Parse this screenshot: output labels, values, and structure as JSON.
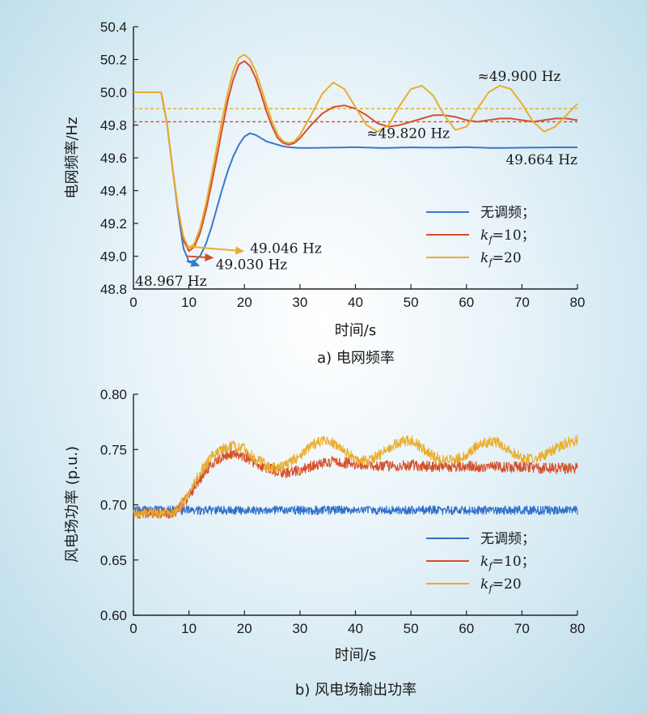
{
  "chart_data": [
    {
      "type": "line",
      "caption": "a) 电网频率",
      "xlabel": "时间/s",
      "ylabel": "电网频率/Hz",
      "xlim": [
        0,
        80
      ],
      "ylim": [
        48.8,
        50.4
      ],
      "xticks": [
        0,
        10,
        20,
        30,
        40,
        50,
        60,
        70,
        80
      ],
      "yticks": [
        48.8,
        49.0,
        49.2,
        49.4,
        49.6,
        49.8,
        50.0,
        50.2,
        50.4
      ],
      "ytick_labels": [
        "48.8",
        "49.0",
        "49.2",
        "49.4",
        "49.6",
        "49.8",
        "50.0",
        "50.2",
        "50.4"
      ],
      "legend_position": "lower-right",
      "series": [
        {
          "legend_prefix": "无调频；",
          "legend_sub": "",
          "legend_suffix": "",
          "color": "#3a78c9",
          "x": [
            0,
            5,
            6,
            7,
            8,
            9,
            10,
            11,
            12,
            13,
            14,
            15,
            16,
            17,
            18,
            19,
            20,
            21,
            22,
            23,
            24,
            25,
            26,
            27,
            28,
            30,
            35,
            40,
            45,
            50,
            55,
            60,
            65,
            70,
            75,
            80
          ],
          "y": [
            50.0,
            50.0,
            49.82,
            49.55,
            49.28,
            49.05,
            48.967,
            48.97,
            49.0,
            49.07,
            49.17,
            49.29,
            49.41,
            49.52,
            49.61,
            49.68,
            49.73,
            49.75,
            49.74,
            49.72,
            49.7,
            49.69,
            49.68,
            49.67,
            49.665,
            49.66,
            49.662,
            49.665,
            49.66,
            49.664,
            49.662,
            49.665,
            49.66,
            49.662,
            49.664,
            49.664
          ]
        },
        {
          "legend_prefix": "",
          "legend_sub": "f",
          "legend_suffix": "=10；",
          "color": "#d4502a",
          "x": [
            0,
            5,
            6,
            7,
            8,
            9,
            10,
            11,
            12,
            13,
            14,
            15,
            16,
            17,
            18,
            19,
            20,
            21,
            22,
            23,
            24,
            25,
            26,
            27,
            28,
            29,
            30,
            32,
            34,
            36,
            38,
            40,
            42,
            44,
            46,
            48,
            50,
            52,
            54,
            56,
            58,
            60,
            62,
            64,
            66,
            68,
            70,
            72,
            74,
            76,
            78,
            80
          ],
          "y": [
            50.0,
            50.0,
            49.82,
            49.55,
            49.3,
            49.1,
            49.03,
            49.06,
            49.14,
            49.27,
            49.43,
            49.6,
            49.78,
            49.95,
            50.08,
            50.17,
            50.19,
            50.16,
            50.09,
            49.99,
            49.88,
            49.79,
            49.72,
            49.69,
            49.68,
            49.69,
            49.72,
            49.8,
            49.87,
            49.91,
            49.92,
            49.9,
            49.86,
            49.81,
            49.79,
            49.8,
            49.82,
            49.84,
            49.86,
            49.86,
            49.85,
            49.83,
            49.82,
            49.83,
            49.84,
            49.84,
            49.83,
            49.82,
            49.83,
            49.84,
            49.84,
            49.83
          ]
        },
        {
          "legend_prefix": "",
          "legend_sub": "f",
          "legend_suffix": "=20",
          "color": "#e9ad2c",
          "x": [
            0,
            5,
            6,
            7,
            8,
            9,
            10,
            11,
            12,
            13,
            14,
            15,
            16,
            17,
            18,
            19,
            20,
            21,
            22,
            23,
            24,
            25,
            26,
            27,
            28,
            29,
            30,
            32,
            34,
            36,
            38,
            40,
            42,
            44,
            46,
            48,
            50,
            52,
            54,
            56,
            58,
            60,
            62,
            64,
            66,
            68,
            70,
            72,
            74,
            76,
            78,
            80
          ],
          "y": [
            50.0,
            50.0,
            49.82,
            49.55,
            49.3,
            49.12,
            49.046,
            49.08,
            49.17,
            49.31,
            49.48,
            49.66,
            49.84,
            50.0,
            50.13,
            50.21,
            50.23,
            50.2,
            50.13,
            50.03,
            49.92,
            49.82,
            49.74,
            49.7,
            49.69,
            49.7,
            49.74,
            49.86,
            49.99,
            50.06,
            50.02,
            49.91,
            49.8,
            49.76,
            49.8,
            49.92,
            50.02,
            50.04,
            49.98,
            49.86,
            49.77,
            49.79,
            49.9,
            50.0,
            50.04,
            50.02,
            49.93,
            49.82,
            49.76,
            49.79,
            49.86,
            49.93
          ]
        }
      ],
      "reference_lines": [
        {
          "y": 49.9,
          "color": "#e9ad2c"
        },
        {
          "y": 49.82,
          "color": "#d4502a"
        }
      ],
      "annotations": [
        {
          "text": "≈49.900 Hz",
          "x": 62,
          "y": 50.07,
          "anchor": "start"
        },
        {
          "text": "≈49.820 Hz",
          "x": 42,
          "y": 49.72,
          "anchor": "start"
        },
        {
          "text": "49.664 Hz",
          "x": 80,
          "y": 49.56,
          "anchor": "end"
        },
        {
          "text": "49.046 Hz",
          "x": 21,
          "y": 49.02,
          "anchor": "start"
        },
        {
          "text": "49.030 Hz",
          "x": 14.8,
          "y": 48.92,
          "anchor": "start"
        },
        {
          "text": "48.967 Hz",
          "x": 0.3,
          "y": 48.82,
          "anchor": "start"
        }
      ],
      "arrows": [
        {
          "from": [
            9.6,
            49.06
          ],
          "to": [
            20.0,
            49.03
          ],
          "color": "#e9ad2c"
        },
        {
          "from": [
            9.6,
            49.0
          ],
          "to": [
            14.5,
            48.99
          ],
          "color": "#d4502a"
        },
        {
          "from": [
            9.6,
            48.97
          ],
          "to": [
            12.0,
            48.94
          ],
          "color": "#3a78c9"
        }
      ]
    },
    {
      "type": "line",
      "caption": "b) 风电场输出功率",
      "xlabel": "时间/s",
      "ylabel": "风电场功率 (p.u.)",
      "xlim": [
        0,
        80
      ],
      "ylim": [
        0.6,
        0.8
      ],
      "xticks": [
        0,
        10,
        20,
        30,
        40,
        50,
        60,
        70,
        80
      ],
      "yticks": [
        0.6,
        0.65,
        0.7,
        0.75,
        0.8
      ],
      "ytick_labels": [
        "0.60",
        "0.65",
        "0.70",
        "0.75",
        "0.80"
      ],
      "legend_position": "lower-right",
      "series": [
        {
          "legend_prefix": "无调频；",
          "legend_sub": "",
          "legend_suffix": "",
          "color": "#2f6fc7",
          "x": [
            0,
            80
          ],
          "y": [
            0.695,
            0.695
          ],
          "noise": 0.004
        },
        {
          "legend_prefix": "",
          "legend_sub": "f",
          "legend_suffix": "=10；",
          "color": "#d4502a",
          "x": [
            0,
            5,
            7,
            8,
            10,
            12,
            14,
            16,
            18,
            20,
            22,
            24,
            26,
            28,
            30,
            32,
            34,
            36,
            38,
            40,
            45,
            50,
            55,
            60,
            65,
            70,
            75,
            80
          ],
          "y": [
            0.692,
            0.692,
            0.693,
            0.695,
            0.708,
            0.724,
            0.736,
            0.744,
            0.747,
            0.744,
            0.738,
            0.733,
            0.73,
            0.729,
            0.731,
            0.735,
            0.738,
            0.739,
            0.738,
            0.737,
            0.735,
            0.736,
            0.734,
            0.735,
            0.734,
            0.734,
            0.733,
            0.733
          ],
          "noise": 0.005
        },
        {
          "legend_prefix": "",
          "legend_sub": "f",
          "legend_suffix": "=20",
          "color": "#e9ad2c",
          "x": [
            0,
            5,
            7,
            8,
            10,
            12,
            14,
            16,
            18,
            20,
            22,
            24,
            26,
            28,
            30,
            32,
            34,
            36,
            38,
            40,
            42,
            44,
            46,
            48,
            50,
            52,
            54,
            56,
            58,
            60,
            62,
            64,
            66,
            68,
            70,
            72,
            74,
            76,
            78,
            80
          ],
          "y": [
            0.692,
            0.692,
            0.693,
            0.696,
            0.711,
            0.73,
            0.743,
            0.75,
            0.753,
            0.75,
            0.742,
            0.735,
            0.733,
            0.737,
            0.745,
            0.754,
            0.758,
            0.756,
            0.749,
            0.741,
            0.74,
            0.744,
            0.751,
            0.757,
            0.758,
            0.752,
            0.744,
            0.74,
            0.741,
            0.746,
            0.753,
            0.757,
            0.756,
            0.749,
            0.742,
            0.741,
            0.745,
            0.751,
            0.756,
            0.758
          ],
          "noise": 0.005
        }
      ]
    }
  ]
}
